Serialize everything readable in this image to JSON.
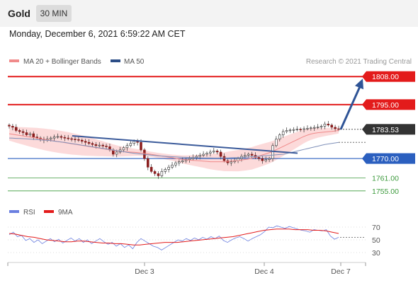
{
  "header": {
    "instrument": "Gold",
    "timeframe": "30 MIN",
    "datetime": "Monday, December 6, 2021 6:59:22 AM CET"
  },
  "legend": {
    "ma20": "MA 20 + Bollinger Bands",
    "ma50": "MA 50",
    "watermark": "Research © 2021 Trading Central",
    "rsi": "RSI",
    "ma9": "9MA"
  },
  "colors": {
    "resistance": "#e31b1b",
    "support_primary": "#2b5fbf",
    "support_secondary": "#3c9a3c",
    "current_price": "#333333",
    "bollinger": "#fbd3d3",
    "ma20": "#f08a8a",
    "ma50": "#7f90b9",
    "trendline": "#3a5a9a",
    "arrow": "#2f5496",
    "rsi": "#6a7fe0",
    "rsi_ma": "#e31b1b"
  },
  "chart_data": [
    {
      "type": "candlestick",
      "x_ticks": [
        "Dec 3",
        "Dec 4",
        "Dec 7"
      ],
      "price_levels": [
        {
          "label": "1808.00",
          "value": 1808.0,
          "role": "resistance"
        },
        {
          "label": "1795.00",
          "value": 1795.0,
          "role": "resistance"
        },
        {
          "label": "1783.53",
          "value": 1783.53,
          "role": "current"
        },
        {
          "label": "1770.00",
          "value": 1770.0,
          "role": "pivot"
        },
        {
          "label": "1761.00",
          "value": 1761.0,
          "role": "support"
        },
        {
          "label": "1755.00",
          "value": 1755.0,
          "role": "support"
        }
      ],
      "ylim": [
        1751,
        1812
      ],
      "close": [
        1785,
        1784.5,
        1783,
        1782.5,
        1782,
        1781,
        1781.5,
        1780,
        1779.5,
        1779,
        1778.5,
        1779,
        1779.5,
        1780,
        1780.2,
        1779.8,
        1779.5,
        1779.2,
        1779,
        1778.8,
        1778.5,
        1778,
        1777.5,
        1777,
        1776.5,
        1776,
        1776.2,
        1775.8,
        1775.5,
        1774,
        1772,
        1773,
        1774,
        1775,
        1776,
        1777,
        1778,
        1777.5,
        1774,
        1770,
        1766,
        1764,
        1763,
        1762,
        1764,
        1765,
        1766,
        1767,
        1768,
        1768.5,
        1769,
        1769.5,
        1770,
        1770.5,
        1771,
        1771.5,
        1772,
        1772.5,
        1773,
        1773.5,
        1773,
        1771,
        1769,
        1768,
        1768.5,
        1769,
        1770,
        1771,
        1771.5,
        1772,
        1771.5,
        1770.5,
        1770,
        1769,
        1769.5,
        1770,
        1776,
        1779,
        1781,
        1782.5,
        1783,
        1783.2,
        1783.4,
        1783.6,
        1783.5,
        1783.8,
        1784,
        1784.2,
        1784.4,
        1784.6,
        1785,
        1786,
        1785.5,
        1784.5,
        1783.8,
        1783.5
      ],
      "ma20": [
        1781.5,
        1781,
        1780.5,
        1780,
        1779.5,
        1779,
        1778.5,
        1778,
        1777.5,
        1777,
        1776.5,
        1776,
        1775.5,
        1775,
        1774.5,
        1774,
        1773.5,
        1773.2,
        1773,
        1772.8,
        1772.5,
        1772,
        1771.5,
        1771,
        1770.5,
        1770,
        1769.5,
        1769.2,
        1769,
        1768.8,
        1768.5,
        1768.5,
        1768.5,
        1768.8,
        1769,
        1769.5,
        1770,
        1771,
        1772,
        1773,
        1774.5,
        1776,
        1777.5,
        1779,
        1780.5,
        1781.5,
        1782,
        1782.3,
        1782.6,
        1783
      ],
      "ma50": [
        1779.5,
        1779.2,
        1778.8,
        1778.3,
        1777.5,
        1776.5,
        1775.5,
        1774.5,
        1773.5,
        1772.5,
        1771.8,
        1771.2,
        1770.8,
        1770.5,
        1770.3,
        1770.2,
        1770.3,
        1770.5,
        1771,
        1771.5,
        1772,
        1773.5,
        1775,
        1776.5,
        1777.5
      ],
      "trendline": [
        [
          0.18,
          1780.5
        ],
        [
          0.81,
          1772.5
        ]
      ],
      "projection": [
        [
          1783.53,
          1808
        ]
      ]
    },
    {
      "type": "line",
      "title": "RSI",
      "y_ticks": [
        70,
        50,
        30
      ],
      "ylim": [
        20,
        80
      ],
      "series": [
        {
          "name": "RSI",
          "values": [
            58,
            62,
            55,
            57,
            49,
            52,
            46,
            50,
            44,
            48,
            52,
            47,
            51,
            45,
            49,
            53,
            48,
            52,
            46,
            50,
            44,
            48,
            52,
            47,
            43,
            46,
            40,
            44,
            38,
            42,
            36,
            46,
            52,
            48,
            44,
            40,
            38,
            34,
            38,
            42,
            46,
            50,
            48,
            52,
            49,
            53,
            50,
            54,
            51,
            55,
            52,
            56,
            49,
            46,
            50,
            53,
            55,
            52,
            48,
            52,
            55,
            58,
            63,
            70,
            69,
            72,
            70,
            68,
            71,
            69,
            67,
            65,
            64,
            62,
            66,
            65,
            64,
            66,
            56,
            51,
            54
          ]
        },
        {
          "name": "9MA",
          "values": [
            60,
            59,
            57,
            55,
            54,
            52,
            50,
            49,
            48,
            47,
            47,
            48,
            48,
            47,
            46,
            45,
            45,
            44,
            44,
            43,
            42,
            42,
            43,
            44,
            45,
            46,
            46,
            46,
            47,
            48,
            49,
            50,
            51,
            52,
            53,
            54,
            55,
            57,
            59,
            61,
            63,
            65,
            66,
            67,
            67,
            67,
            66,
            66,
            66,
            65,
            65,
            64,
            62,
            60
          ]
        }
      ]
    }
  ]
}
